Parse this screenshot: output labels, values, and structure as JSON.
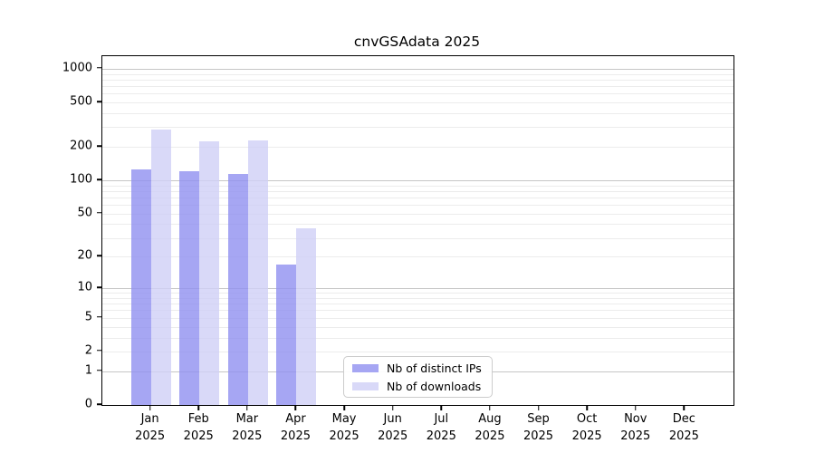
{
  "chart_data": {
    "type": "bar",
    "title": "cnvGSAdata 2025",
    "categories": [
      "Jan",
      "Feb",
      "Mar",
      "Apr",
      "May",
      "Jun",
      "Jul",
      "Aug",
      "Sep",
      "Oct",
      "Nov",
      "Dec"
    ],
    "x_tick_year_line": "2025",
    "series": [
      {
        "name": "Nb of distinct IPs",
        "color": "#a6a6f3",
        "bar_color": "rgba(144,144,240,0.8)",
        "values": [
          126,
          121,
          115,
          17,
          0,
          0,
          0,
          0,
          0,
          0,
          0,
          0
        ]
      },
      {
        "name": "Nb of downloads",
        "color": "#d9d9f8",
        "bar_color": "rgba(208,208,246,0.8)",
        "values": [
          287,
          224,
          228,
          37,
          0,
          0,
          0,
          0,
          0,
          0,
          0,
          0
        ]
      }
    ],
    "y_axis": {
      "scale": "log1p",
      "ticks": [
        0,
        1,
        2,
        5,
        10,
        20,
        50,
        100,
        200,
        500,
        1000
      ],
      "major_gridlines": [
        1,
        10,
        100,
        1000
      ],
      "minor_gridline_multipliers": [
        2,
        3,
        4,
        5,
        6,
        7,
        8,
        9
      ],
      "minor_gridline_decades": [
        1,
        10,
        100
      ]
    },
    "grid": true,
    "legend_position": "lower-center"
  },
  "colors": {
    "background": "#ffffff",
    "axis": "#000000",
    "major_grid": "#c6c6c6",
    "minor_grid": "#ececec",
    "text": "#000000"
  }
}
